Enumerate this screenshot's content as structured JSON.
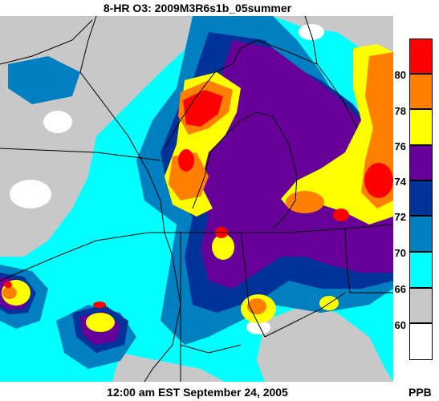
{
  "title": "8-HR O3: 2009M3R6s1b_05summer",
  "timestamp": "12:00 am EST September 24, 2005",
  "unit": "PPB",
  "legend": {
    "bins": [
      {
        "color": "#ff0000",
        "label": ""
      },
      {
        "color": "#ff8000",
        "label": "80"
      },
      {
        "color": "#ffff00",
        "label": "78"
      },
      {
        "color": "#660099",
        "label": "76"
      },
      {
        "color": "#003399",
        "label": "74"
      },
      {
        "color": "#0080c0",
        "label": "72"
      },
      {
        "color": "#00ffff",
        "label": "70"
      },
      {
        "color": "#c8c8c8",
        "label": "66"
      },
      {
        "color": "#ffffff",
        "label": "60"
      }
    ]
  },
  "colors": {
    "background_land": "#00ffff",
    "lake": "#c8c8c8",
    "boundary": "#000000"
  }
}
